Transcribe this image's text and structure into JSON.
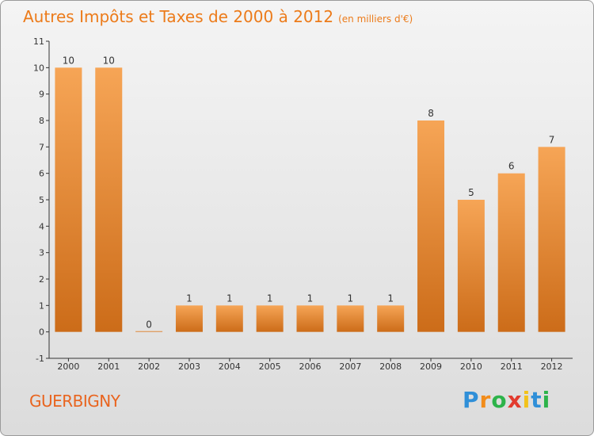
{
  "title": "Autres Impôts et Taxes de 2000 à 2012",
  "unit_note": "(en milliers d'€)",
  "commune": "GUERBIGNY",
  "brand": {
    "letters": [
      "P",
      "r",
      "o",
      "x",
      "i",
      "t",
      "i"
    ],
    "colors": [
      "#2f8fd8",
      "#f28c1a",
      "#2db34a",
      "#e23b2e",
      "#f2c21a",
      "#2f8fd8",
      "#2db34a"
    ]
  },
  "colors": {
    "bar_light": "#f6a556",
    "bar_dark": "#cc6c19",
    "title": "#ec7b1a",
    "commune": "#e9641e"
  },
  "chart_data": {
    "type": "bar",
    "categories": [
      "2000",
      "2001",
      "2002",
      "2003",
      "2004",
      "2005",
      "2006",
      "2007",
      "2008",
      "2009",
      "2010",
      "2011",
      "2012"
    ],
    "values": [
      10,
      10,
      0,
      1,
      1,
      1,
      1,
      1,
      1,
      8,
      5,
      6,
      7
    ],
    "data_labels": [
      "10",
      "10",
      "0",
      "1",
      "1",
      "1",
      "1",
      "1",
      "1",
      "8",
      "5",
      "6",
      "7"
    ],
    "y_ticks": [
      "-1",
      "0",
      "1",
      "2",
      "3",
      "4",
      "5",
      "6",
      "7",
      "8",
      "9",
      "10",
      "11"
    ],
    "ylim": [
      -1,
      11
    ],
    "title": "Autres Impôts et Taxes de 2000 à 2012",
    "xlabel": "",
    "ylabel": "",
    "grid": false
  }
}
